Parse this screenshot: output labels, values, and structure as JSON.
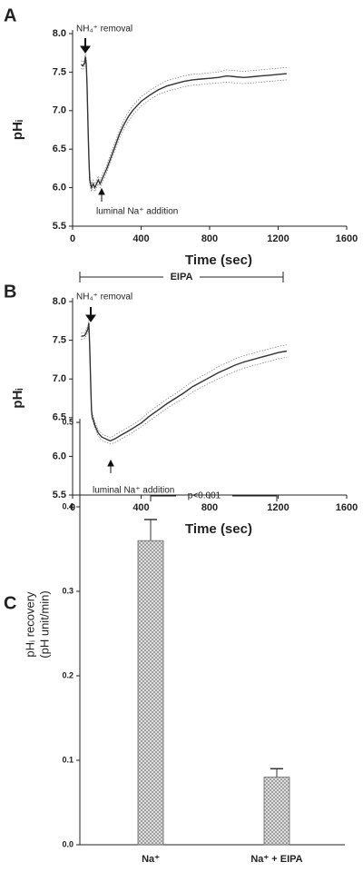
{
  "chart_data": [
    {
      "type": "line",
      "panel_label": "A",
      "xlabel": "Time (sec)",
      "ylabel": "pHᵢ",
      "annotations": [
        "NH₄⁺ removal",
        "luminal Na⁺ addition"
      ],
      "xlim": [
        0,
        1600
      ],
      "xticks": [
        0,
        400,
        800,
        1200,
        1600
      ],
      "ylim": [
        5.5,
        8.0
      ],
      "yticks": [
        5.5,
        {
          "value": 6.0,
          "label": "6.0"
        },
        6.5,
        {
          "value": 7.0,
          "label": "7.0"
        },
        7.5,
        {
          "value": 8.0,
          "label": "8.0"
        }
      ],
      "color": "#333333",
      "x": [
        50,
        60,
        70,
        75,
        80,
        85,
        90,
        95,
        100,
        110,
        120,
        130,
        140,
        150,
        160,
        180,
        200,
        225,
        250,
        275,
        300,
        325,
        350,
        375,
        400,
        450,
        500,
        550,
        600,
        650,
        700,
        750,
        800,
        850,
        900,
        950,
        1000,
        1050,
        1100,
        1150,
        1200,
        1250
      ],
      "values": [
        7.6,
        7.58,
        7.62,
        7.7,
        7.6,
        7.3,
        6.8,
        6.4,
        6.1,
        6.0,
        6.05,
        6.0,
        6.05,
        6.1,
        6.05,
        6.15,
        6.25,
        6.4,
        6.55,
        6.7,
        6.82,
        6.92,
        7.0,
        7.06,
        7.12,
        7.2,
        7.27,
        7.32,
        7.35,
        7.38,
        7.4,
        7.41,
        7.42,
        7.43,
        7.45,
        7.44,
        7.43,
        7.44,
        7.45,
        7.46,
        7.47,
        7.48
      ],
      "errors": [
        0.05,
        0.05,
        0.05,
        0.05,
        0.05,
        0.06,
        0.06,
        0.06,
        0.06,
        0.05,
        0.05,
        0.05,
        0.05,
        0.05,
        0.05,
        0.05,
        0.05,
        0.05,
        0.05,
        0.05,
        0.06,
        0.06,
        0.06,
        0.06,
        0.06,
        0.06,
        0.06,
        0.07,
        0.07,
        0.07,
        0.07,
        0.07,
        0.07,
        0.07,
        0.08,
        0.08,
        0.08,
        0.08,
        0.08,
        0.08,
        0.08,
        0.08
      ]
    },
    {
      "type": "line",
      "panel_label": "B",
      "xlabel": "Time (sec)",
      "ylabel": "pHᵢ",
      "annotations": [
        "NH₄⁺ removal",
        "luminal Na⁺ addition"
      ],
      "bracket_label": "EIPA",
      "xlim": [
        0,
        1600
      ],
      "xticks": [
        0,
        400,
        800,
        1200,
        1600
      ],
      "ylim": [
        5.5,
        8.0
      ],
      "yticks": [
        5.5,
        {
          "value": 6.0,
          "label": "6.0"
        },
        6.5,
        {
          "value": 7.0,
          "label": "7.0"
        },
        7.5,
        {
          "value": 8.0,
          "label": "8.0"
        }
      ],
      "color": "#333333",
      "x": [
        50,
        70,
        80,
        90,
        95,
        100,
        105,
        110,
        115,
        120,
        130,
        150,
        170,
        200,
        220,
        250,
        280,
        320,
        350,
        400,
        450,
        500,
        550,
        600,
        650,
        700,
        750,
        800,
        850,
        900,
        950,
        1000,
        1050,
        1100,
        1150,
        1200,
        1250
      ],
      "values": [
        7.55,
        7.56,
        7.6,
        7.65,
        7.72,
        7.4,
        7.0,
        6.6,
        6.5,
        6.48,
        6.4,
        6.3,
        6.25,
        6.22,
        6.2,
        6.23,
        6.27,
        6.32,
        6.36,
        6.43,
        6.52,
        6.6,
        6.68,
        6.75,
        6.82,
        6.9,
        6.96,
        7.02,
        7.08,
        7.13,
        7.18,
        7.22,
        7.25,
        7.28,
        7.31,
        7.34,
        7.36
      ],
      "errors": [
        0.04,
        0.04,
        0.04,
        0.04,
        0.04,
        0.04,
        0.04,
        0.04,
        0.04,
        0.04,
        0.04,
        0.04,
        0.04,
        0.04,
        0.04,
        0.05,
        0.05,
        0.05,
        0.05,
        0.05,
        0.06,
        0.06,
        0.06,
        0.06,
        0.07,
        0.07,
        0.07,
        0.07,
        0.08,
        0.08,
        0.08,
        0.08,
        0.08,
        0.08,
        0.08,
        0.08,
        0.08
      ]
    },
    {
      "type": "bar",
      "panel_label": "C",
      "ylabel": [
        "pHᵢ recovery",
        "(pH unit/min)"
      ],
      "annotation": "p<0.001",
      "categories": [
        "Na⁺",
        "Na⁺ + EIPA"
      ],
      "values": [
        0.36,
        0.08
      ],
      "errors": [
        0.025,
        0.01
      ],
      "color": "#bdbdbd",
      "ylim": [
        0,
        0.5
      ],
      "yticks": [
        {
          "value": 0,
          "label": "0.0"
        },
        0.1,
        0.2,
        0.3,
        0.4,
        0.5
      ]
    }
  ]
}
